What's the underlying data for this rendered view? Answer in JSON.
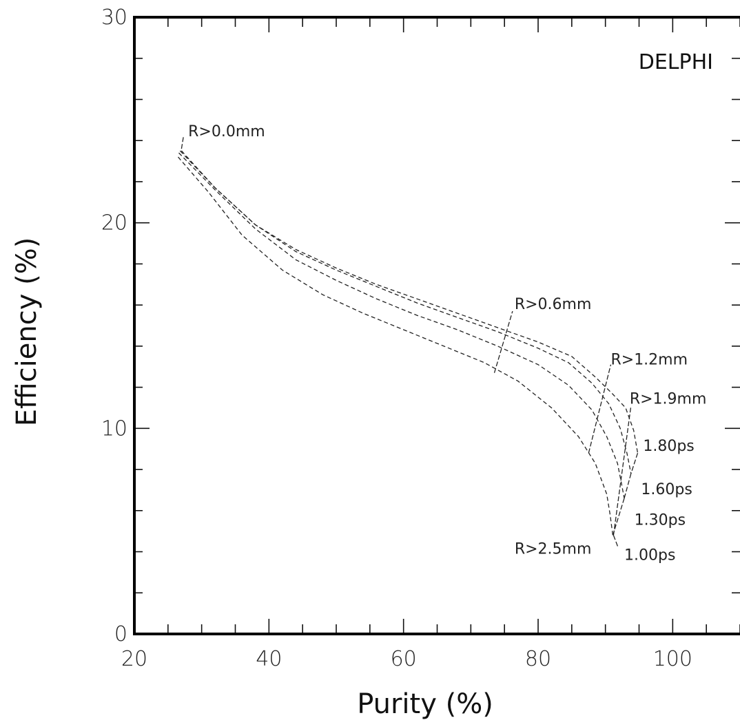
{
  "chart_data": {
    "type": "line",
    "title": "",
    "xlabel": "Purity (%)",
    "ylabel": "Efficiency (%)",
    "xlim": [
      20,
      110
    ],
    "ylim": [
      0,
      30
    ],
    "x_ticks": [
      20,
      40,
      60,
      80,
      100
    ],
    "y_ticks": [
      0,
      10,
      20,
      30
    ],
    "experiment_label": "DELPHI",
    "series": [
      {
        "label": "1.80ps",
        "points": [
          [
            27,
            23.5
          ],
          [
            32,
            21.7
          ],
          [
            38,
            19.9
          ],
          [
            44,
            18.7
          ],
          [
            50,
            17.8
          ],
          [
            56,
            17.0
          ],
          [
            62,
            16.3
          ],
          [
            68,
            15.6
          ],
          [
            74,
            14.9
          ],
          [
            80,
            14.2
          ],
          [
            85,
            13.5
          ],
          [
            88.5,
            12.5
          ],
          [
            91,
            11.7
          ],
          [
            93,
            11.0
          ],
          [
            94.2,
            9.9
          ],
          [
            94.8,
            8.8
          ]
        ]
      },
      {
        "label": "1.60ps",
        "points": [
          [
            26.8,
            23.5
          ],
          [
            32,
            21.7
          ],
          [
            38,
            19.9
          ],
          [
            44,
            18.6
          ],
          [
            50,
            17.7
          ],
          [
            56,
            16.9
          ],
          [
            62,
            16.1
          ],
          [
            68,
            15.4
          ],
          [
            74,
            14.7
          ],
          [
            80,
            13.9
          ],
          [
            84.5,
            13.2
          ],
          [
            88,
            12.2
          ],
          [
            90.5,
            11.2
          ],
          [
            92.2,
            10.0
          ],
          [
            93.2,
            8.8
          ],
          [
            93.8,
            7.8
          ]
        ]
      },
      {
        "label": "1.30ps",
        "points": [
          [
            26.6,
            23.4
          ],
          [
            32,
            21.6
          ],
          [
            38,
            19.7
          ],
          [
            44,
            18.2
          ],
          [
            50,
            17.2
          ],
          [
            56,
            16.3
          ],
          [
            62,
            15.5
          ],
          [
            68,
            14.8
          ],
          [
            74,
            14.0
          ],
          [
            80,
            13.1
          ],
          [
            84.5,
            12.1
          ],
          [
            88,
            10.9
          ],
          [
            90.2,
            9.6
          ],
          [
            91.8,
            8.3
          ],
          [
            92.4,
            7.3
          ],
          [
            92.8,
            6.6
          ]
        ]
      },
      {
        "label": "1.00ps",
        "points": [
          [
            26.5,
            23.2
          ],
          [
            31,
            21.5
          ],
          [
            36,
            19.4
          ],
          [
            42,
            17.7
          ],
          [
            48,
            16.5
          ],
          [
            54,
            15.6
          ],
          [
            60,
            14.8
          ],
          [
            66,
            14.0
          ],
          [
            72,
            13.2
          ],
          [
            77,
            12.3
          ],
          [
            82,
            11.0
          ],
          [
            86,
            9.6
          ],
          [
            88.5,
            8.3
          ],
          [
            90.2,
            6.8
          ],
          [
            90.7,
            5.8
          ],
          [
            91.1,
            4.8
          ]
        ]
      }
    ],
    "annotations": [
      {
        "text": "R>0.0mm",
        "x": 28,
        "y": 24.2,
        "points_to": [
          27,
          23.6
        ]
      },
      {
        "text": "R>0.6mm",
        "x": 76.5,
        "y": 15.8,
        "points_to": [
          73.5,
          12.7
        ]
      },
      {
        "text": "R>1.2mm",
        "x": 90.8,
        "y": 13.1,
        "points_to": [
          87.5,
          8.8
        ]
      },
      {
        "text": "R>1.9mm",
        "x": 93.6,
        "y": 11.2,
        "points_to": [
          90.8,
          6.1
        ]
      },
      {
        "text": "R>2.5mm",
        "x": 76.5,
        "y": 3.9,
        "points_to": [
          91.2,
          4.8
        ]
      },
      {
        "text": "1.80ps",
        "x": 95.6,
        "y": 8.9
      },
      {
        "text": "1.60ps",
        "x": 95.3,
        "y": 6.8
      },
      {
        "text": "1.30ps",
        "x": 94.3,
        "y": 5.3
      },
      {
        "text": "1.00ps",
        "x": 92.8,
        "y": 3.6
      }
    ],
    "connector_lines": [
      {
        "name": "R>0.0mm",
        "points": [
          [
            27,
            23.6
          ],
          [
            27.3,
            24.2
          ]
        ]
      },
      {
        "name": "R>0.6mm",
        "points": [
          [
            73.5,
            12.7
          ],
          [
            76.2,
            15.7
          ]
        ]
      },
      {
        "name": "R>1.2mm",
        "points": [
          [
            87.5,
            8.8
          ],
          [
            90.8,
            13.1
          ]
        ]
      },
      {
        "name": "R>1.9mm",
        "points": [
          [
            91.2,
            4.8
          ],
          [
            93.8,
            11.1
          ]
        ]
      },
      {
        "name": "R>2.5mm",
        "points": [
          [
            91.2,
            4.8
          ],
          [
            91.9,
            4.2
          ]
        ]
      },
      {
        "name": "join-1.80-1.60",
        "points": [
          [
            94.8,
            8.8
          ],
          [
            93.8,
            7.8
          ]
        ]
      },
      {
        "name": "join-1.60-1.30",
        "points": [
          [
            93.8,
            7.8
          ],
          [
            92.8,
            6.6
          ]
        ]
      },
      {
        "name": "join-1.30-1.00",
        "points": [
          [
            92.8,
            6.6
          ],
          [
            91.1,
            4.8
          ]
        ]
      }
    ],
    "grid": false,
    "legend": "none"
  }
}
